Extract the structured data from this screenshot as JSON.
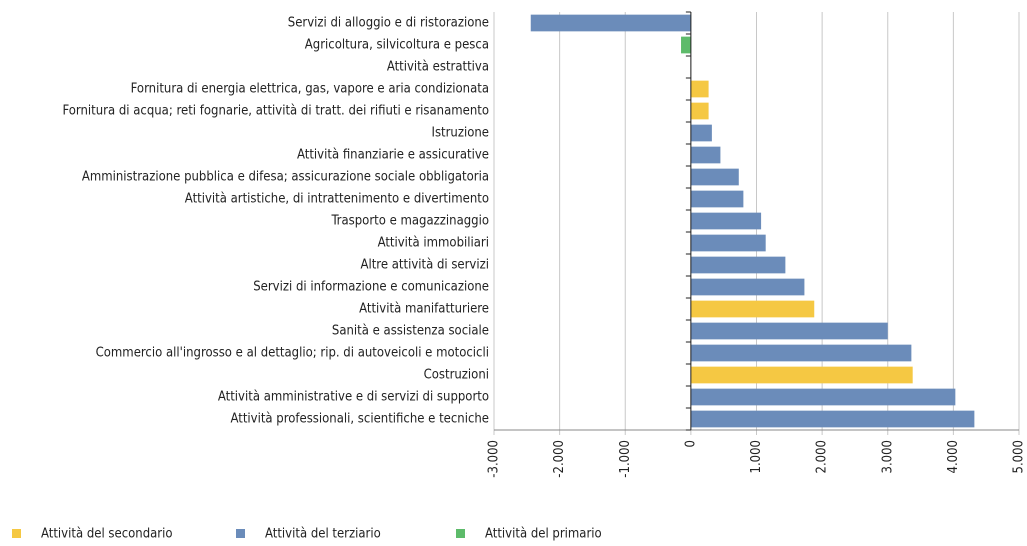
{
  "chart_data": {
    "type": "hbar",
    "categories": [
      "Servizi di alloggio e di ristorazione",
      "Agricoltura, silvicoltura e pesca",
      "Attività estrattiva",
      "Fornitura di energia elettrica, gas, vapore e aria condizionata",
      "Fornitura di acqua; reti fognarie, attività di tratt. dei rifiuti e risanamento",
      "Istruzione",
      "Attività finanziarie e assicurative",
      "Amministrazione pubblica e difesa; assicurazione sociale obbligatoria",
      "Attività artistiche, di intrattenimento e divertimento",
      "Trasporto e magazzinaggio",
      "Attività  immobiliari",
      "Altre attività di servizi",
      "Servizi di informazione e comunicazione",
      "Attività  manifatturiere",
      "Sanità e assistenza sociale",
      "Commercio all'ingrosso e al dettaglio; rip. di autoveicoli e motocicli",
      "Costruzioni",
      "Attività amministrative e di servizi di supporto",
      "Attività  professionali, scientifiche e tecniche"
    ],
    "series": [
      {
        "name": "Attività del secondario",
        "color": "#f5c843",
        "values": [
          null,
          null,
          0,
          270,
          270,
          null,
          null,
          null,
          null,
          null,
          null,
          null,
          null,
          1880,
          null,
          null,
          3380,
          null,
          null
        ]
      },
      {
        "name": "Attività del terziario",
        "color": "#6b8cba",
        "values": [
          -2440,
          null,
          null,
          null,
          null,
          320,
          450,
          730,
          800,
          1070,
          1140,
          1440,
          1730,
          null,
          3000,
          3360,
          null,
          4030,
          4320
        ]
      },
      {
        "name": "Attività del primario",
        "color": "#5dbb6a",
        "values": [
          null,
          -150,
          null,
          null,
          null,
          null,
          null,
          null,
          null,
          null,
          null,
          null,
          null,
          null,
          null,
          null,
          null,
          null,
          null
        ]
      }
    ],
    "xlim": [
      -3000,
      5000
    ],
    "xticks": [
      {
        "value": -3000,
        "label": "-3.000"
      },
      {
        "value": -2000,
        "label": "-2.000"
      },
      {
        "value": -1000,
        "label": "-1.000"
      },
      0,
      {
        "value": 1000,
        "label": "1.000"
      },
      {
        "value": 2000,
        "label": "2.000"
      },
      {
        "value": 3000,
        "label": "3.000"
      },
      {
        "value": 4000,
        "label": "4.000"
      },
      {
        "value": 5000,
        "label": "5.000"
      }
    ],
    "grid": true,
    "legend": "bottom-left"
  }
}
